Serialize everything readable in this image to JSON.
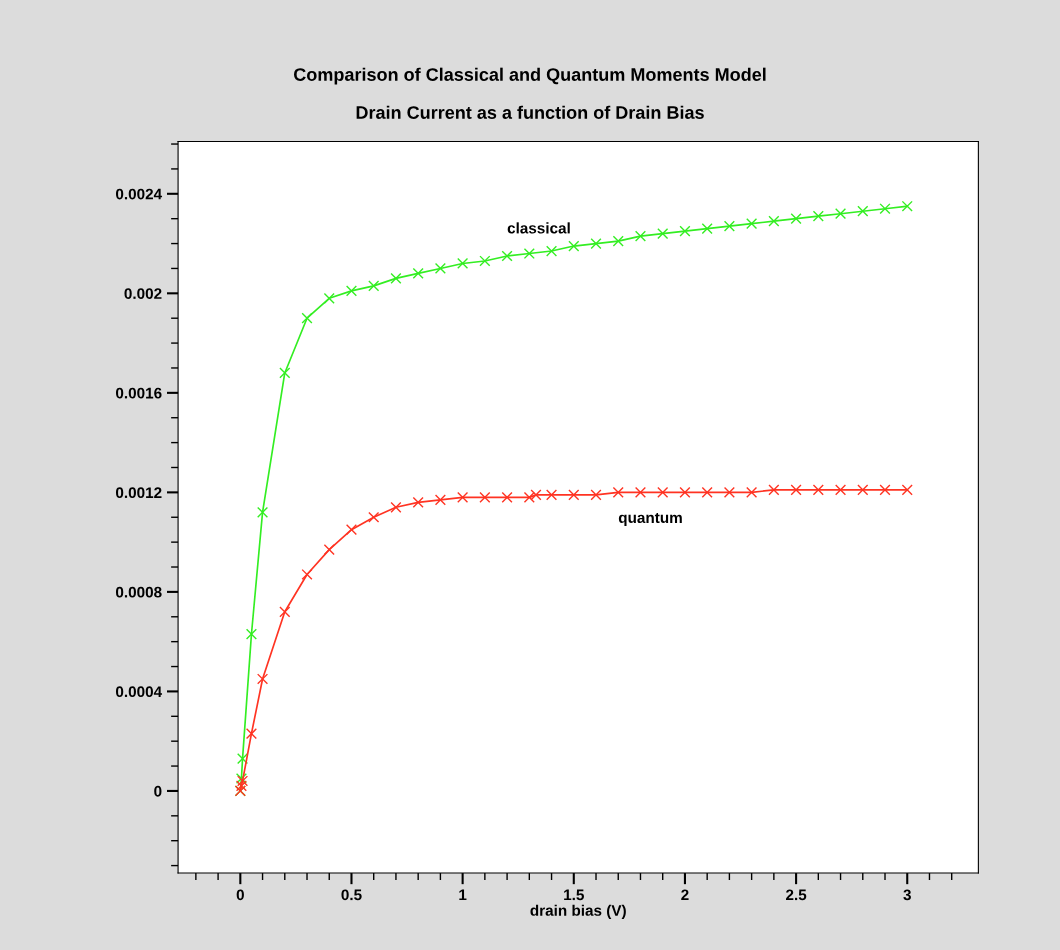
{
  "chart_data": {
    "type": "line",
    "title": "Comparison of Classical and Quantum Moments Model",
    "subtitle": "Drain Current as a function of Drain Bias",
    "xlabel": "drain bias (V)",
    "marker": "cross",
    "grid": false,
    "legend": false,
    "xlim": [
      -0.28,
      3.32
    ],
    "ylim": [
      -0.00033,
      0.00261
    ],
    "xticks": [
      {
        "value": -0.2,
        "label": null
      },
      {
        "value": -0.1,
        "label": null
      },
      0,
      {
        "value": 0.1,
        "label": null
      },
      {
        "value": 0.2,
        "label": null
      },
      {
        "value": 0.3,
        "label": null
      },
      {
        "value": 0.4,
        "label": null
      },
      0.5,
      {
        "value": 0.6,
        "label": null
      },
      {
        "value": 0.7,
        "label": null
      },
      {
        "value": 0.8,
        "label": null
      },
      {
        "value": 0.9,
        "label": null
      },
      1,
      {
        "value": 1.1,
        "label": null
      },
      {
        "value": 1.2,
        "label": null
      },
      {
        "value": 1.3,
        "label": null
      },
      {
        "value": 1.4,
        "label": null
      },
      1.5,
      {
        "value": 1.6,
        "label": null
      },
      {
        "value": 1.7,
        "label": null
      },
      {
        "value": 1.8,
        "label": null
      },
      {
        "value": 1.9,
        "label": null
      },
      2,
      {
        "value": 2.1,
        "label": null
      },
      {
        "value": 2.2,
        "label": null
      },
      {
        "value": 2.3,
        "label": null
      },
      {
        "value": 2.4,
        "label": null
      },
      2.5,
      {
        "value": 2.6,
        "label": null
      },
      {
        "value": 2.7,
        "label": null
      },
      {
        "value": 2.8,
        "label": null
      },
      {
        "value": 2.9,
        "label": null
      },
      3,
      {
        "value": 3.1,
        "label": null
      },
      {
        "value": 3.2,
        "label": null
      }
    ],
    "yticks": [
      {
        "value": -0.0003,
        "label": null
      },
      {
        "value": -0.0002,
        "label": null
      },
      {
        "value": -0.0001,
        "label": null
      },
      0,
      {
        "value": 0.0001,
        "label": null
      },
      {
        "value": 0.0002,
        "label": null
      },
      {
        "value": 0.0003,
        "label": null
      },
      0.0004,
      {
        "value": 0.0005,
        "label": null
      },
      {
        "value": 0.0006,
        "label": null
      },
      {
        "value": 0.0007,
        "label": null
      },
      0.0008,
      {
        "value": 0.0009,
        "label": null
      },
      {
        "value": 0.001,
        "label": null
      },
      {
        "value": 0.0011,
        "label": null
      },
      0.0012,
      {
        "value": 0.0013,
        "label": null
      },
      {
        "value": 0.0014,
        "label": null
      },
      {
        "value": 0.0015,
        "label": null
      },
      0.0016,
      {
        "value": 0.0017,
        "label": null
      },
      {
        "value": 0.0018,
        "label": null
      },
      {
        "value": 0.0019,
        "label": null
      },
      0.002,
      {
        "value": 0.0021,
        "label": null
      },
      {
        "value": 0.0022,
        "label": null
      },
      {
        "value": 0.0023,
        "label": null
      },
      0.0024,
      {
        "value": 0.0025,
        "label": null
      },
      {
        "value": 0.0026,
        "label": null
      }
    ],
    "series": [
      {
        "name": "classical",
        "color": "#33ee22",
        "x": [
          0,
          0.005,
          0.01,
          0.05,
          0.1,
          0.2,
          0.3,
          0.4,
          0.5,
          0.6,
          0.7,
          0.8,
          0.9,
          1.0,
          1.1,
          1.2,
          1.3,
          1.4,
          1.5,
          1.6,
          1.7,
          1.8,
          1.9,
          2.0,
          2.1,
          2.2,
          2.3,
          2.4,
          2.5,
          2.6,
          2.7,
          2.8,
          2.9,
          3.0
        ],
        "values": [
          0,
          5e-05,
          0.00013,
          0.00063,
          0.00112,
          0.00168,
          0.0019,
          0.00198,
          0.00201,
          0.00203,
          0.00206,
          0.00208,
          0.0021,
          0.00212,
          0.00213,
          0.00215,
          0.00216,
          0.00217,
          0.00219,
          0.0022,
          0.00221,
          0.00223,
          0.00224,
          0.00225,
          0.00226,
          0.00227,
          0.00228,
          0.00229,
          0.0023,
          0.00231,
          0.00232,
          0.00233,
          0.00234,
          0.00235
        ]
      },
      {
        "name": "quantum",
        "color": "#ff3322",
        "x": [
          0,
          0.005,
          0.01,
          0.05,
          0.1,
          0.2,
          0.3,
          0.4,
          0.5,
          0.6,
          0.7,
          0.8,
          0.9,
          1.0,
          1.1,
          1.2,
          1.3,
          1.33,
          1.4,
          1.5,
          1.6,
          1.7,
          1.8,
          1.9,
          2.0,
          2.1,
          2.2,
          2.3,
          2.4,
          2.5,
          2.6,
          2.7,
          2.8,
          2.9,
          3.0
        ],
        "values": [
          0,
          2e-05,
          4e-05,
          0.00023,
          0.00045,
          0.00072,
          0.00087,
          0.00097,
          0.00105,
          0.0011,
          0.00114,
          0.00116,
          0.00117,
          0.00118,
          0.00118,
          0.00118,
          0.00118,
          0.00119,
          0.00119,
          0.00119,
          0.00119,
          0.0012,
          0.0012,
          0.0012,
          0.0012,
          0.0012,
          0.0012,
          0.0012,
          0.00121,
          0.00121,
          0.00121,
          0.00121,
          0.00121,
          0.00121,
          0.00121
        ]
      }
    ]
  }
}
